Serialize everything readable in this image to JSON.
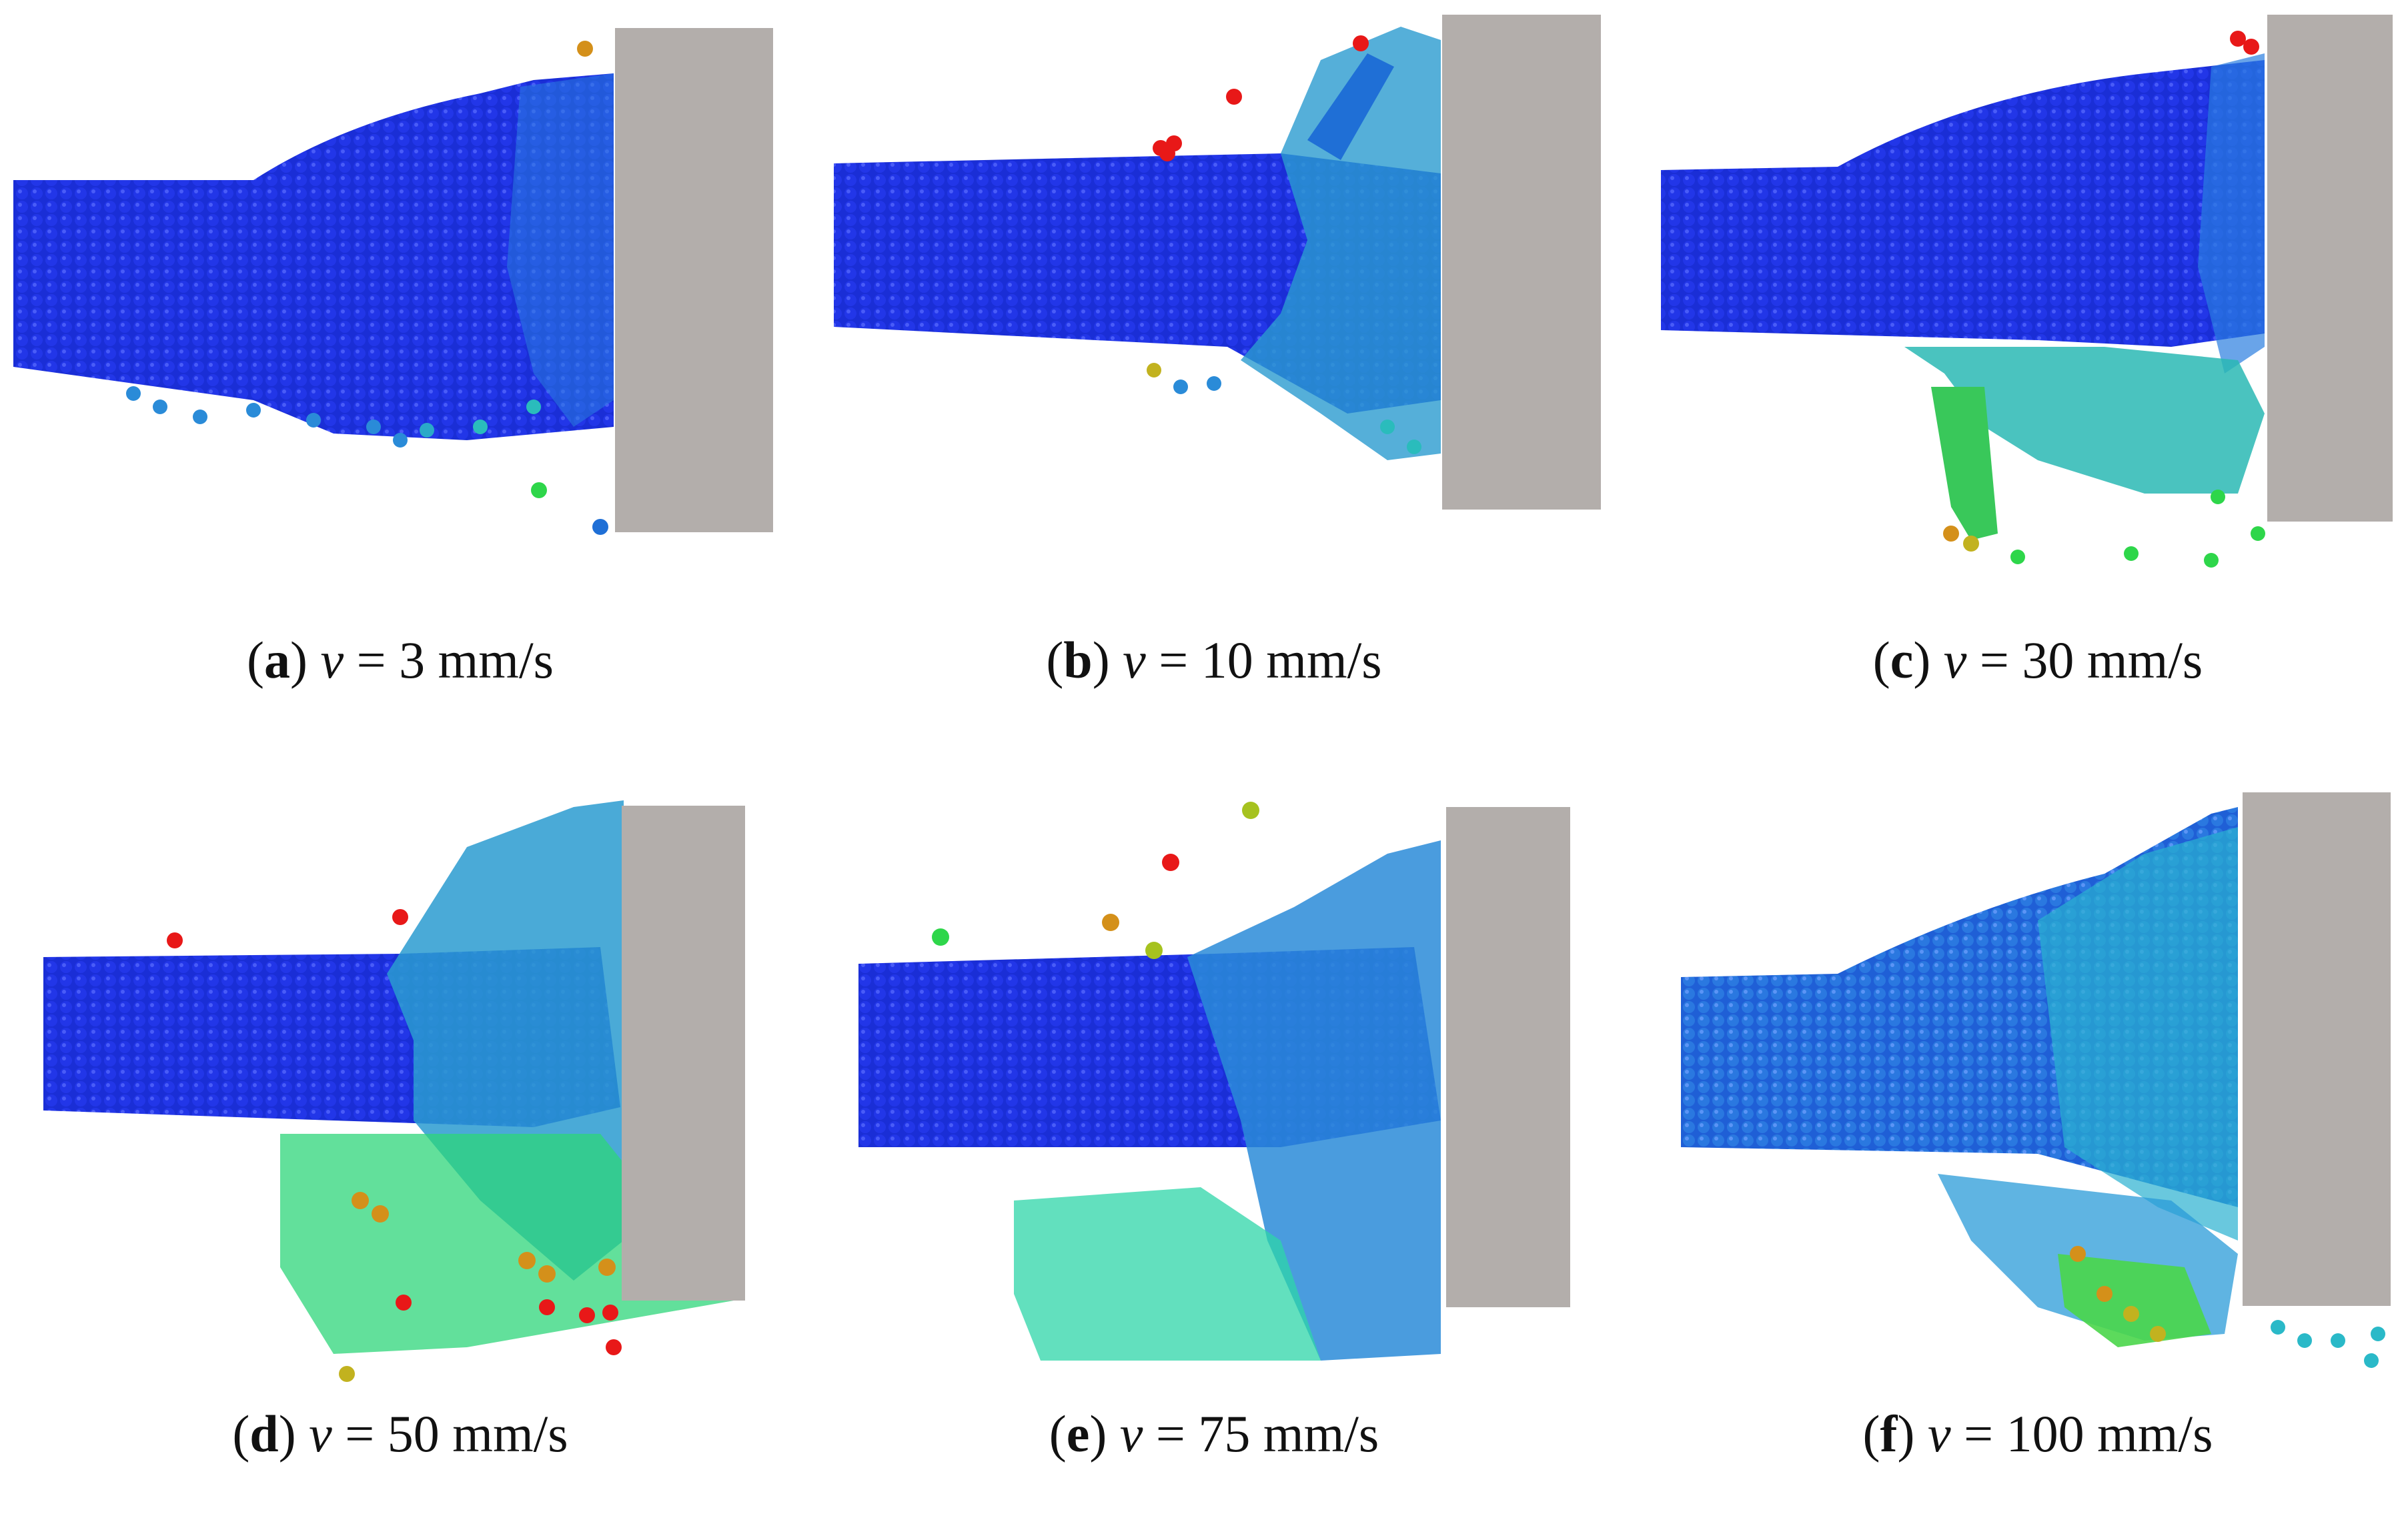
{
  "colors": {
    "background": "#ffffff",
    "wall": "#b3aeab",
    "particle_low": "#1a2ed6",
    "particle_mid_blue": "#1f6fd6",
    "particle_cyan": "#25b9c6",
    "particle_green": "#2ed64a",
    "particle_yellow": "#a6c21f",
    "particle_orange": "#d4901a",
    "particle_red": "#e81818"
  },
  "panels": [
    {
      "id": "a",
      "letter": "a",
      "variable": "v",
      "equals": " = ",
      "value": "3 mm/s",
      "open": "(",
      "close": ")"
    },
    {
      "id": "b",
      "letter": "b",
      "variable": "v",
      "equals": " = ",
      "value": "10 mm/s",
      "open": "(",
      "close": ")"
    },
    {
      "id": "c",
      "letter": "c",
      "variable": "v",
      "equals": " = ",
      "value": "30 mm/s",
      "open": "(",
      "close": ")"
    },
    {
      "id": "d",
      "letter": "d",
      "variable": "v",
      "equals": " = ",
      "value": "50 mm/s",
      "open": "(",
      "close": ")"
    },
    {
      "id": "e",
      "letter": "e",
      "variable": "v",
      "equals": " = ",
      "value": "75 mm/s",
      "open": "(",
      "close": ")"
    },
    {
      "id": "f",
      "letter": "f",
      "variable": "v",
      "equals": " = ",
      "value": "100 mm/s",
      "open": "(",
      "close": ")"
    }
  ]
}
